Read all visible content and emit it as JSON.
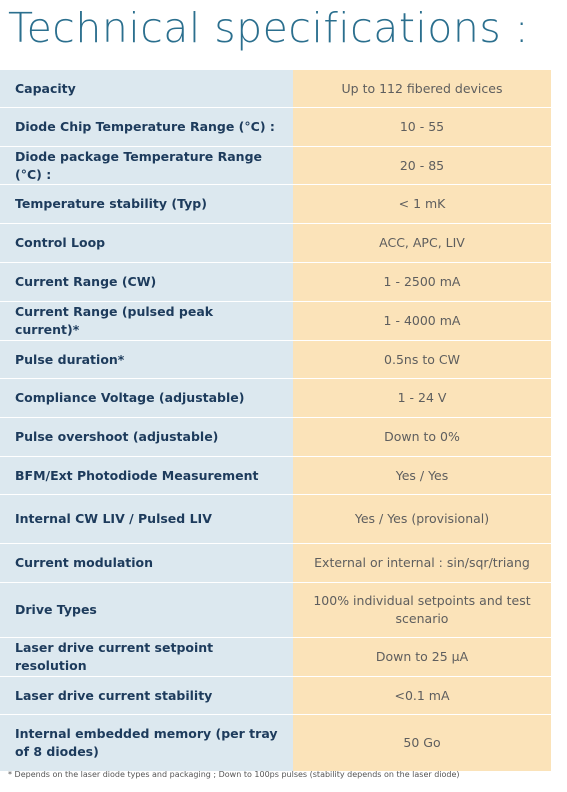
{
  "title": "Technical specifications :",
  "table": {
    "rows": [
      [
        "Capacity",
        "Up to 112 fibered devices"
      ],
      [
        "Diode Chip Temperature Range (°C) :",
        "10 - 55"
      ],
      [
        "Diode package Temperature Range (°C) :",
        "20 - 85"
      ],
      [
        "Temperature stability (Typ)",
        "< 1 mK"
      ],
      [
        "Control Loop",
        "ACC, APC, LIV"
      ],
      [
        "Current Range (CW)",
        "1 - 2500 mA"
      ],
      [
        "Current Range (pulsed peak current)*",
        "1 - 4000 mA"
      ],
      [
        "Pulse duration*",
        "0.5ns to CW"
      ],
      [
        "Compliance Voltage (adjustable)",
        "1 - 24 V"
      ],
      [
        "Pulse overshoot (adjustable)",
        "Down to 0%"
      ],
      [
        "BFM/Ext Photodiode Measurement",
        "Yes / Yes"
      ],
      [
        "Internal CW LIV / Pulsed LIV",
        "Yes / Yes (provisional)"
      ],
      [
        "Current modulation",
        "External or internal : sin/sqr/triang"
      ],
      [
        "Drive Types",
        "100% individual setpoints and test scenario"
      ],
      [
        "Laser drive current setpoint resolution",
        "Down to 25 µA"
      ],
      [
        "Laser drive current stability",
        "<0.1 mA"
      ],
      [
        "Internal embedded memory (per tray of 8 diodes)",
        "50 Go"
      ]
    ]
  },
  "footnote": "* Depends on the laser diode types and packaging ; Down to 100ps pulses (stability depends on the laser diode)"
}
